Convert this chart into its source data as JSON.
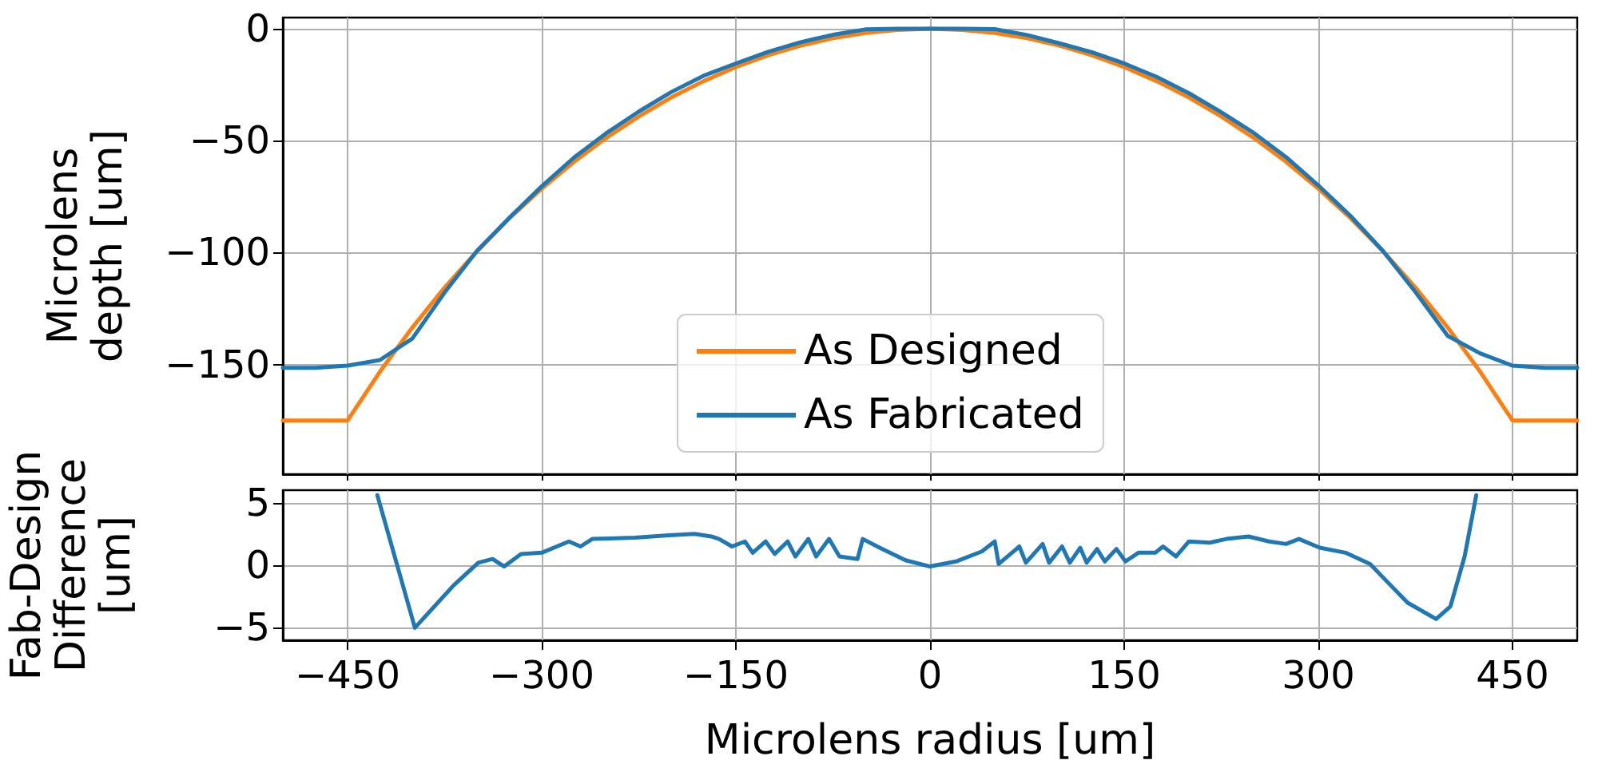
{
  "chart_data": [
    {
      "type": "line",
      "ylabel": "Microlens depth [um]",
      "xlim": [
        -500,
        500
      ],
      "xticks": [
        -450,
        -300,
        -150,
        0,
        150,
        300,
        450
      ],
      "ylim": [
        -199,
        5
      ],
      "yticks": [
        -150,
        -100,
        -50,
        0
      ],
      "grid": true,
      "legend": "lower center",
      "marker": "none",
      "line_style": "solid",
      "tick_labels": "y",
      "x": [
        -500,
        -475,
        -450,
        -425,
        -400,
        -375,
        -350,
        -325,
        -300,
        -275,
        -250,
        -225,
        -200,
        -175,
        -150,
        -125,
        -100,
        -75,
        -50,
        -25,
        0,
        25,
        50,
        75,
        100,
        125,
        150,
        175,
        200,
        225,
        250,
        275,
        300,
        325,
        350,
        375,
        400,
        425,
        450,
        475,
        500
      ],
      "series": [
        {
          "name": "As Designed",
          "color": "#ff7f0e",
          "values": [
            -175,
            -175,
            -175,
            -153.2,
            -133.5,
            -115.6,
            -99.4,
            -84.7,
            -71.4,
            -59.4,
            -48.7,
            -39.2,
            -30.7,
            -23.4,
            -17.1,
            -11.8,
            -7.5,
            -4.2,
            -1.9,
            -0.5,
            0,
            -0.5,
            -1.9,
            -4.2,
            -7.5,
            -11.8,
            -17.1,
            -23.4,
            -30.7,
            -39.2,
            -48.7,
            -59.4,
            -71.4,
            -84.7,
            -99.4,
            -115.6,
            -133.5,
            -153.2,
            -175,
            -175,
            -175
          ]
        },
        {
          "name": "As Fabricated",
          "color": "#1f77b4",
          "values": [
            -151.5,
            -151.5,
            -150.5,
            -148,
            -138.4,
            -117.8,
            -99.2,
            -84.4,
            -70.4,
            -57.5,
            -46.6,
            -37.0,
            -28.3,
            -21.0,
            -15.5,
            -10.3,
            -6.0,
            -2.7,
            -0.3,
            0,
            0,
            0,
            -0.2,
            -2.8,
            -6.5,
            -10.5,
            -15.5,
            -21.5,
            -28.8,
            -37.3,
            -46.5,
            -57.3,
            -70.0,
            -83.7,
            -99.3,
            -117.6,
            -137.2,
            -145,
            -150.5,
            -151.5,
            -151.5
          ]
        }
      ]
    },
    {
      "type": "line",
      "xlabel": "Microlens radius [um]",
      "ylabel": "Fab-Design Difference [um]",
      "xlim": [
        -500,
        500
      ],
      "xticks": [
        -450,
        -300,
        -150,
        0,
        150,
        300,
        450
      ],
      "ylim": [
        -6,
        6
      ],
      "yticks": [
        -5,
        0,
        5
      ],
      "grid": true,
      "marker": "none",
      "line_style": "solid",
      "x": [
        -427,
        -398,
        -368,
        -349,
        -338,
        -329,
        -316,
        -300,
        -279,
        -270,
        -261,
        -228,
        -202,
        -182,
        -169,
        -163,
        -153,
        -143,
        -137,
        -127,
        -120,
        -110,
        -104,
        -94,
        -88,
        -78,
        -70,
        -56,
        -52,
        -39,
        -19,
        0,
        20,
        40,
        50,
        53,
        69,
        74,
        87,
        92,
        102,
        108,
        116,
        121,
        129,
        135,
        144,
        151,
        161,
        174,
        180,
        190,
        200,
        216,
        229,
        246,
        262,
        275,
        285,
        301,
        321,
        340,
        353,
        369,
        391,
        402,
        413,
        422
      ],
      "series": [
        {
          "color": "#1f77b4",
          "values": [
            5.6,
            -5.0,
            -1.6,
            0.2,
            0.5,
            -0.1,
            0.9,
            1.0,
            1.9,
            1.5,
            2.1,
            2.2,
            2.4,
            2.5,
            2.3,
            2.1,
            1.5,
            1.9,
            1.0,
            1.9,
            0.9,
            1.9,
            0.7,
            2.1,
            0.7,
            2.1,
            0.7,
            0.5,
            2.1,
            1.4,
            0.4,
            -0.1,
            0.3,
            1.1,
            1.9,
            0.1,
            1.5,
            0.2,
            1.7,
            0.2,
            1.5,
            0.2,
            1.4,
            0.2,
            1.3,
            0.3,
            1.3,
            0.3,
            1.0,
            1.0,
            1.5,
            0.7,
            1.9,
            1.8,
            2.1,
            2.3,
            1.9,
            1.7,
            2.1,
            1.4,
            1.0,
            0.1,
            -1.3,
            -3.0,
            -4.3,
            -3.3,
            0.7,
            5.6
          ]
        }
      ]
    }
  ]
}
